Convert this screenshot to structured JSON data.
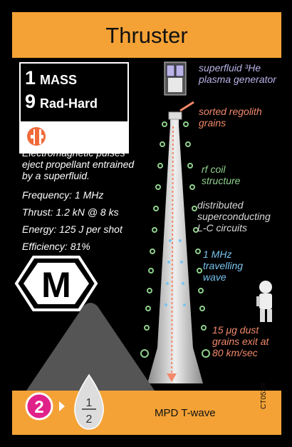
{
  "card": {
    "title": "Thruster",
    "stats": {
      "mass_value": "1",
      "mass_label": "MASS",
      "rad_value": "9",
      "rad_label": "Rad-Hard"
    },
    "description": [
      "Electromagnetic pulses",
      "eject propellant entrained",
      "by a superfluid."
    ],
    "specs": [
      "Frequency: 1 MHz",
      "Thrust: 1.2 kN @ 8 ks",
      "Energy: 125 J per shot",
      "Efficiency: 81%"
    ],
    "type_letter": "M",
    "callouts": {
      "generator": [
        "superfluid ³He",
        "plasma generator"
      ],
      "regolith": [
        "sorted regolith",
        "grains"
      ],
      "coil": [
        "rf coil",
        "structure"
      ],
      "circuits": [
        "distributed",
        "superconducting",
        "L-C circuits"
      ],
      "wave": [
        "1 MHz",
        "travelling",
        "wave"
      ],
      "dust": [
        "15 μg dust",
        "grains exit at",
        "80 km/sec"
      ]
    },
    "colors": {
      "accent": "#f4a236",
      "generator": "#b9b3e8",
      "regolith": "#f2896b",
      "coil": "#8fd18c",
      "circuits": "#d9d9d9",
      "wave": "#79c3ee",
      "magenta": "#e0218a"
    },
    "thrust_value": "2",
    "fuel_numerator": "1",
    "fuel_denominator": "2",
    "footer_label": "MPD T-wave",
    "card_code": "CT053R"
  }
}
